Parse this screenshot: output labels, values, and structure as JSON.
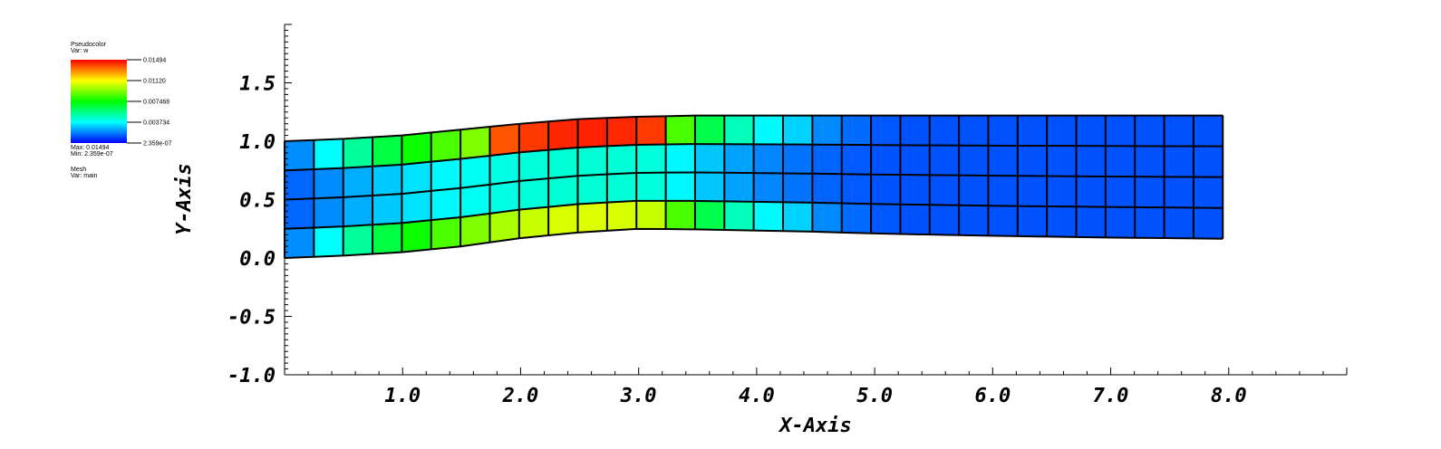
{
  "legend": {
    "plot_type": "Pseudocolor",
    "var_line": "Var: w",
    "max_line": "Max: 0.01494",
    "min_line": "Min: 2.359e-07",
    "mesh_type": "Mesh",
    "mesh_var_line": "Var: main",
    "colorbar_labels": [
      "0.01494",
      "0.01120",
      "0.007468",
      "0.003734",
      "2.359e-07"
    ],
    "colorbar_colors": [
      "#ff0000",
      "#ffff00",
      "#00ff00",
      "#00ffff",
      "#0000ff"
    ]
  },
  "chart_data": {
    "type": "heatmap",
    "title": "",
    "xlabel": "X-Axis",
    "ylabel": "Y-Axis",
    "xlim": [
      0.0,
      9.0
    ],
    "ylim": [
      -1.0,
      2.0
    ],
    "xticks": [
      "1.0",
      "2.0",
      "3.0",
      "4.0",
      "5.0",
      "6.0",
      "7.0",
      "8.0"
    ],
    "xtick_values": [
      1.0,
      2.0,
      3.0,
      4.0,
      5.0,
      6.0,
      7.0,
      8.0
    ],
    "yticks": [
      "-1.0",
      "-0.5",
      "0.0",
      "0.5",
      "1.0",
      "1.5"
    ],
    "ytick_values": [
      -1.0,
      -0.5,
      0.0,
      0.5,
      1.0,
      1.5
    ],
    "variable": "w",
    "value_range": [
      2.359e-07,
      0.01494
    ],
    "mesh": {
      "columns": 32,
      "rows": 4,
      "x_start": 0.0,
      "x_end": 7.95,
      "bottom_edge": [
        [
          0.0,
          0.0
        ],
        [
          0.5,
          0.02
        ],
        [
          1.0,
          0.05
        ],
        [
          1.5,
          0.1
        ],
        [
          2.0,
          0.17
        ],
        [
          2.5,
          0.22
        ],
        [
          3.0,
          0.25
        ],
        [
          3.5,
          0.245
        ],
        [
          4.0,
          0.235
        ],
        [
          4.5,
          0.225
        ],
        [
          5.0,
          0.21
        ],
        [
          6.0,
          0.19
        ],
        [
          7.0,
          0.175
        ],
        [
          7.95,
          0.165
        ]
      ],
      "top_edge": [
        [
          0.0,
          1.0
        ],
        [
          0.5,
          1.02
        ],
        [
          1.0,
          1.05
        ],
        [
          1.5,
          1.1
        ],
        [
          2.0,
          1.15
        ],
        [
          2.5,
          1.19
        ],
        [
          3.0,
          1.21
        ],
        [
          3.5,
          1.22
        ],
        [
          7.95,
          1.22
        ]
      ],
      "mesh_color": "#000000"
    },
    "grid": false,
    "colormap": "hot_desaturated_rainbow"
  }
}
